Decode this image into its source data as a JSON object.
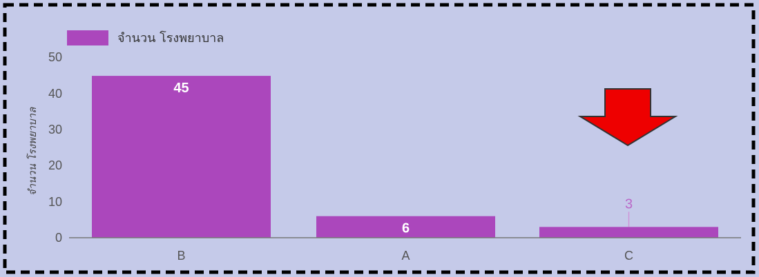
{
  "chart_data": {
    "type": "bar",
    "categories": [
      "B",
      "A",
      "C"
    ],
    "series": [
      {
        "name": "จำนวน โรงพยาบาล",
        "values": [
          45,
          6,
          3
        ]
      }
    ],
    "title": "",
    "xlabel": "",
    "ylabel": "จำนวน โรงพยาบาล",
    "ylim": [
      0,
      50
    ],
    "yticks": [
      "0",
      "10",
      "20",
      "30",
      "40",
      "50"
    ],
    "data_labels": [
      "45",
      "6",
      "3"
    ],
    "legend_position": "top-left",
    "grid": false,
    "colors": {
      "bar": "#ab47bc",
      "background": "#c5cae9",
      "arrow": "#ee0000",
      "border": "#000000"
    }
  },
  "annotation": {
    "icon": "red-down-arrow-icon"
  }
}
